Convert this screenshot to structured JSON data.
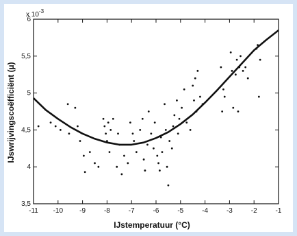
{
  "chart_data": {
    "type": "scatter",
    "xlabel": "IJstemperatuur (°C)",
    "ylabel": "IJswrijvingscoëfficiënt (µ)",
    "y_multiplier_label": "x 10",
    "y_multiplier_exponent": "-3",
    "xlim": [
      -11,
      -1
    ],
    "ylim": [
      3.5,
      6
    ],
    "x_ticks": [
      -11,
      -10,
      -9,
      -8,
      -7,
      -6,
      -5,
      -4,
      -3,
      -2,
      -1
    ],
    "x_tick_labels": [
      "-11",
      "-10",
      "-9",
      "-8",
      "-7",
      "-6",
      "-5",
      "-4",
      "-3",
      "-2",
      "-1"
    ],
    "y_ticks": [
      3.5,
      4,
      4.5,
      5,
      5.5,
      6
    ],
    "y_tick_labels": [
      "3,5",
      "4",
      "4,5",
      "5",
      "5,5",
      "6"
    ],
    "grid": false,
    "series": [
      {
        "kind": "points",
        "points": [
          [
            -10.8,
            4.55
          ],
          [
            -10.3,
            4.6
          ],
          [
            -10.1,
            4.55
          ],
          [
            -9.9,
            4.5
          ],
          [
            -9.6,
            4.85
          ],
          [
            -9.55,
            4.45
          ],
          [
            -9.3,
            4.8
          ],
          [
            -9.2,
            4.55
          ],
          [
            -9.1,
            4.35
          ],
          [
            -8.95,
            4.15
          ],
          [
            -8.9,
            3.93
          ],
          [
            -8.7,
            4.2
          ],
          [
            -8.5,
            4.05
          ],
          [
            -8.35,
            4.0
          ],
          [
            -8.15,
            4.65
          ],
          [
            -8.1,
            4.55
          ],
          [
            -8.05,
            4.45
          ],
          [
            -8.0,
            4.35
          ],
          [
            -7.95,
            4.6
          ],
          [
            -7.9,
            4.2
          ],
          [
            -7.85,
            4.5
          ],
          [
            -7.75,
            4.65
          ],
          [
            -7.6,
            4.0
          ],
          [
            -7.55,
            4.45
          ],
          [
            -7.5,
            4.3
          ],
          [
            -7.4,
            3.9
          ],
          [
            -7.3,
            4.15
          ],
          [
            -7.15,
            4.05
          ],
          [
            -7.05,
            4.6
          ],
          [
            -6.95,
            4.45
          ],
          [
            -6.9,
            4.35
          ],
          [
            -6.8,
            4.2
          ],
          [
            -6.65,
            4.5
          ],
          [
            -6.55,
            4.65
          ],
          [
            -6.5,
            4.1
          ],
          [
            -6.45,
            3.95
          ],
          [
            -6.35,
            4.3
          ],
          [
            -6.3,
            4.75
          ],
          [
            -6.2,
            4.45
          ],
          [
            -6.1,
            4.25
          ],
          [
            -6.05,
            4.6
          ],
          [
            -5.95,
            4.15
          ],
          [
            -5.9,
            4.05
          ],
          [
            -5.85,
            3.95
          ],
          [
            -5.8,
            4.4
          ],
          [
            -5.75,
            4.2
          ],
          [
            -5.65,
            4.85
          ],
          [
            -5.6,
            4.5
          ],
          [
            -5.55,
            4.0
          ],
          [
            -5.5,
            3.75
          ],
          [
            -5.45,
            4.35
          ],
          [
            -5.35,
            4.25
          ],
          [
            -5.3,
            4.55
          ],
          [
            -5.25,
            4.7
          ],
          [
            -5.15,
            4.9
          ],
          [
            -5.1,
            4.45
          ],
          [
            -5.05,
            4.65
          ],
          [
            -4.95,
            4.8
          ],
          [
            -4.85,
            5.05
          ],
          [
            -4.75,
            4.6
          ],
          [
            -4.6,
            4.5
          ],
          [
            -4.5,
            5.1
          ],
          [
            -4.45,
            4.9
          ],
          [
            -4.4,
            5.2
          ],
          [
            -4.35,
            4.75
          ],
          [
            -4.3,
            5.3
          ],
          [
            -4.2,
            4.95
          ],
          [
            -4.1,
            4.85
          ],
          [
            -3.35,
            5.35
          ],
          [
            -3.3,
            4.75
          ],
          [
            -3.25,
            5.05
          ],
          [
            -3.2,
            4.95
          ],
          [
            -2.95,
            5.55
          ],
          [
            -2.9,
            5.3
          ],
          [
            -2.85,
            4.8
          ],
          [
            -2.75,
            5.25
          ],
          [
            -2.7,
            5.45
          ],
          [
            -2.65,
            4.75
          ],
          [
            -2.6,
            5.35
          ],
          [
            -2.55,
            5.5
          ],
          [
            -2.45,
            5.3
          ],
          [
            -2.35,
            5.35
          ],
          [
            -2.25,
            5.2
          ],
          [
            -1.9,
            5.6
          ],
          [
            -1.85,
            5.65
          ],
          [
            -1.8,
            4.95
          ],
          [
            -1.75,
            5.45
          ]
        ]
      },
      {
        "kind": "fitted-curve",
        "points": [
          [
            -11,
            4.93
          ],
          [
            -10.5,
            4.77
          ],
          [
            -10,
            4.65
          ],
          [
            -9.5,
            4.54
          ],
          [
            -9,
            4.45
          ],
          [
            -8.5,
            4.38
          ],
          [
            -8,
            4.33
          ],
          [
            -7.5,
            4.3
          ],
          [
            -7,
            4.3
          ],
          [
            -6.5,
            4.33
          ],
          [
            -6,
            4.39
          ],
          [
            -5.5,
            4.47
          ],
          [
            -5,
            4.58
          ],
          [
            -4.5,
            4.71
          ],
          [
            -4,
            4.87
          ],
          [
            -3.5,
            5.04
          ],
          [
            -3,
            5.22
          ],
          [
            -2.5,
            5.4
          ],
          [
            -2,
            5.58
          ],
          [
            -1.5,
            5.72
          ],
          [
            -1,
            5.85
          ]
        ]
      }
    ]
  }
}
